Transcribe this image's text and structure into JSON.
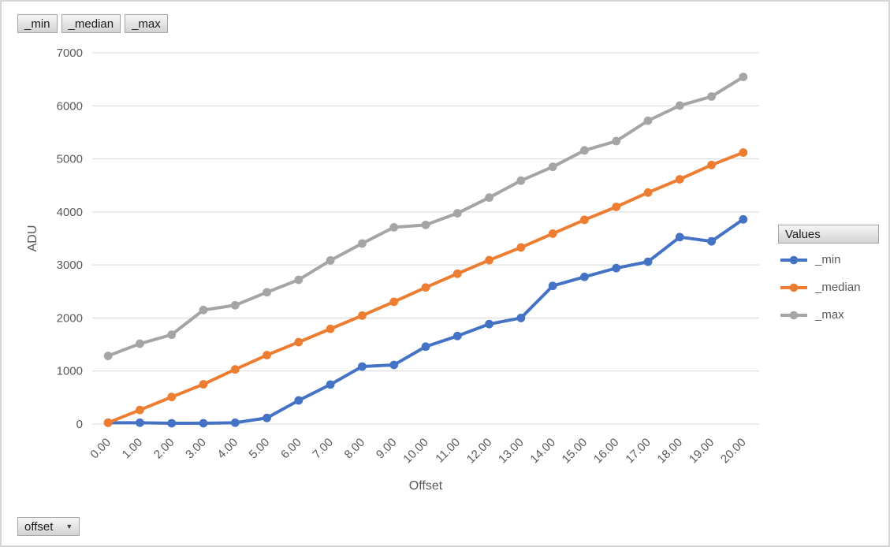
{
  "field_buttons": {
    "items": [
      {
        "label": "_min"
      },
      {
        "label": "_median"
      },
      {
        "label": "_max"
      }
    ]
  },
  "legend": {
    "header": "Values",
    "items": [
      {
        "label": "_min",
        "color": "#4472C4"
      },
      {
        "label": "_median",
        "color": "#ED7D31"
      },
      {
        "label": "_max",
        "color": "#A5A5A5"
      }
    ]
  },
  "axis_field_button": {
    "label": "offset",
    "dropdown_icon": "▼"
  },
  "colors": {
    "axis_text": "#595959",
    "gridline": "#D9D9D9",
    "series_min": "#4472C4",
    "series_median": "#ED7D31",
    "series_max": "#A5A5A5"
  },
  "chart_data": {
    "type": "line",
    "title": "",
    "xlabel": "Offset",
    "ylabel": "ADU",
    "ylim": [
      0,
      7000
    ],
    "ytick_interval": 1000,
    "grid": true,
    "legend_position": "right",
    "marker": "circle",
    "categories": [
      "0.00",
      "1.00",
      "2.00",
      "3.00",
      "4.00",
      "5.00",
      "6.00",
      "7.00",
      "8.00",
      "9.00",
      "10.00",
      "11.00",
      "12.00",
      "13.00",
      "14.00",
      "15.00",
      "16.00",
      "17.00",
      "18.00",
      "19.00",
      "20.00"
    ],
    "series": [
      {
        "name": "_min",
        "color": "#4472C4",
        "values": [
          25,
          25,
          15,
          15,
          25,
          115,
          445,
          745,
          1085,
          1115,
          1460,
          1660,
          1885,
          2000,
          2605,
          2775,
          2940,
          3060,
          3525,
          3445,
          3860
        ]
      },
      {
        "name": "_median",
        "color": "#ED7D31",
        "values": [
          25,
          265,
          510,
          750,
          1030,
          1300,
          1545,
          1795,
          2045,
          2305,
          2575,
          2835,
          3090,
          3330,
          3590,
          3850,
          4095,
          4365,
          4615,
          4885,
          5120
        ]
      },
      {
        "name": "_max",
        "color": "#A5A5A5",
        "values": [
          1285,
          1515,
          1685,
          2150,
          2240,
          2485,
          2720,
          3085,
          3405,
          3710,
          3755,
          3975,
          4270,
          4590,
          4850,
          5160,
          5335,
          5720,
          6005,
          6175,
          6545
        ]
      }
    ]
  }
}
